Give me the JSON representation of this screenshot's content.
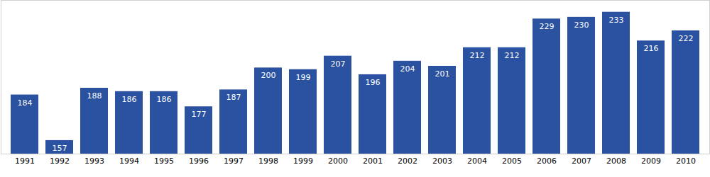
{
  "chart_data": {
    "type": "bar",
    "categories": [
      "1991",
      "1992",
      "1993",
      "1994",
      "1995",
      "1996",
      "1997",
      "1998",
      "1999",
      "2000",
      "2001",
      "2002",
      "2003",
      "2004",
      "2005",
      "2006",
      "2007",
      "2008",
      "2009",
      "2010"
    ],
    "values": [
      184,
      157,
      188,
      186,
      186,
      177,
      187,
      200,
      199,
      207,
      196,
      204,
      201,
      212,
      212,
      229,
      230,
      233,
      216,
      222
    ],
    "color": "#2b52a1",
    "ylim": [
      149,
      240
    ],
    "grid": false,
    "data_labels": true,
    "tick_labels": "x"
  }
}
